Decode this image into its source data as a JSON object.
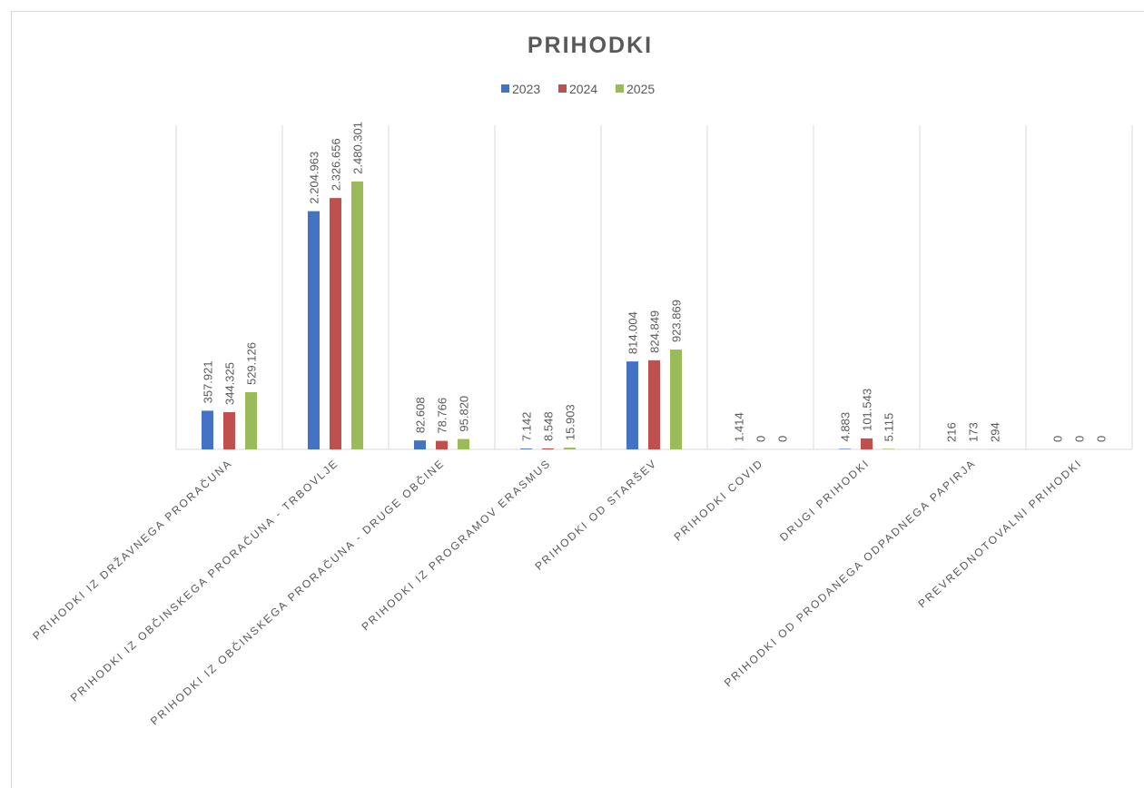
{
  "chart_data": {
    "type": "bar",
    "title": "PRIHODKI",
    "categories": [
      "PRIHODKI IZ DRŽAVNEGA PRORAČUNA",
      "PRIHODKI IZ OBČINSKEGA PRORAČUNA - TRBOVLJE",
      "PRIHODKI IZ OBČINSKEGA PRORAČUNA - DRUGE OBČINE",
      "PRIHODKI IZ PROGRAMOV ERASMUS",
      "PRIHODKI OD STARŠEV",
      "PRIHODKI COVID",
      "DRUGI PRIHODKI",
      "PRIHODKI OD PRODANEGA ODPADNEGA PAPIRJA",
      "PREVREDNOTOVALNI PRIHODKI"
    ],
    "series": [
      {
        "name": "2023",
        "color": "#4472c4",
        "values": [
          357921,
          2204963,
          82608,
          7142,
          814004,
          1414,
          4883,
          216,
          0
        ],
        "value_labels": [
          "357.921",
          "2.204.963",
          "82.608",
          "7.142",
          "814.004",
          "1.414",
          "4.883",
          "216",
          "0"
        ]
      },
      {
        "name": "2024",
        "color": "#c0504d",
        "values": [
          344325,
          2326656,
          78766,
          8548,
          824849,
          0,
          101543,
          173,
          0
        ],
        "value_labels": [
          "344.325",
          "2.326.656",
          "78.766",
          "8.548",
          "824.849",
          "0",
          "101.543",
          "173",
          "0"
        ]
      },
      {
        "name": "2025",
        "color": "#9bbb59",
        "values": [
          529126,
          2480301,
          95820,
          15903,
          923869,
          0,
          5115,
          294,
          0
        ],
        "value_labels": [
          "529.126",
          "2.480.301",
          "95.820",
          "15.903",
          "923.869",
          "0",
          "5.115",
          "294",
          "0"
        ]
      }
    ],
    "ylim": [
      0,
      3000000
    ],
    "legend": "top"
  }
}
